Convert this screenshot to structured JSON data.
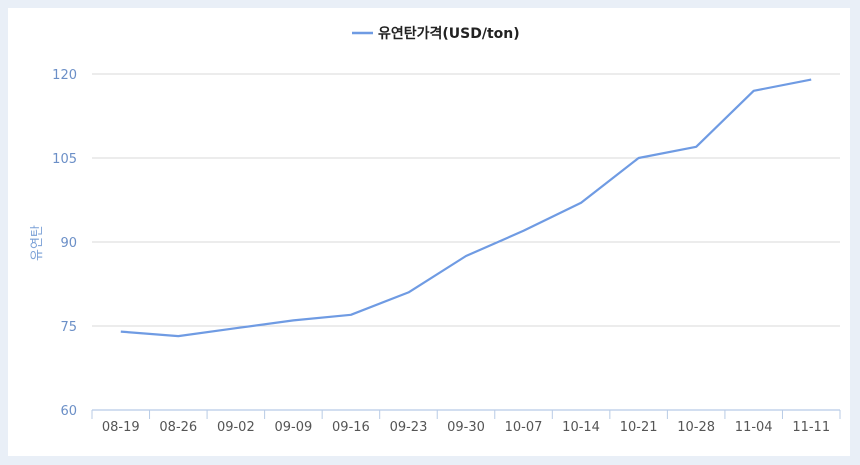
{
  "chart_data": {
    "type": "line",
    "title": "",
    "xlabel": "",
    "ylabel": "유연탄",
    "categories": [
      "08-19",
      "08-26",
      "09-02",
      "09-09",
      "09-16",
      "09-23",
      "09-30",
      "10-07",
      "10-14",
      "10-21",
      "10-28",
      "11-04",
      "11-11"
    ],
    "series": [
      {
        "name": "유연탄가격(USD/ton)",
        "values": [
          74,
          73.2,
          74.6,
          76,
          77,
          81,
          87.5,
          92,
          97,
          105,
          107,
          117,
          119
        ]
      }
    ],
    "ylim": [
      60,
      120
    ],
    "yticks": [
      60,
      75,
      90,
      105,
      120
    ],
    "grid": true,
    "legend": "top-center",
    "color": "#6f9be3"
  }
}
